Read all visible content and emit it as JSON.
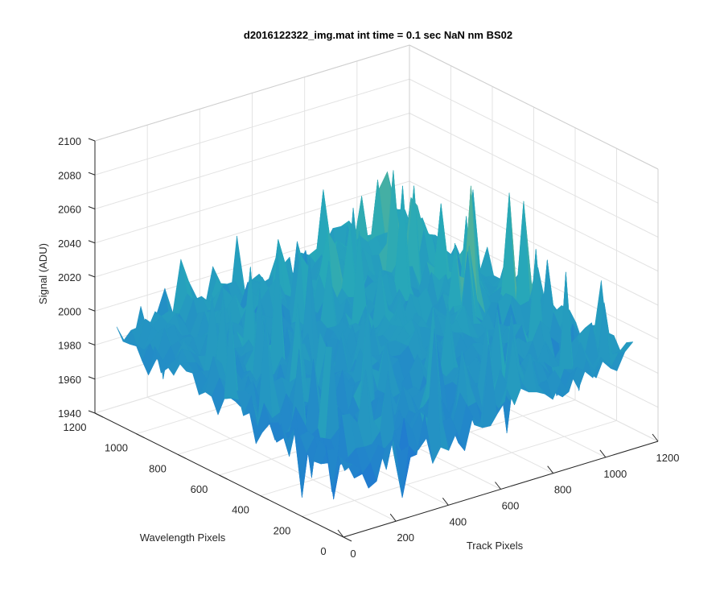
{
  "chart_data": {
    "type": "surface",
    "title": "d2016122322_img.mat int time = 0.1 sec  NaN nm BS02",
    "xlabel": "Track Pixels",
    "ylabel": "Wavelength Pixels",
    "zlabel": "Signal (ADU)",
    "xlim": [
      0,
      1200
    ],
    "ylim": [
      0,
      1200
    ],
    "zlim": [
      1940,
      2100
    ],
    "xticks": [
      "0",
      "200",
      "400",
      "600",
      "800",
      "1000",
      "1200"
    ],
    "yticks": [
      "0",
      "200",
      "400",
      "600",
      "800",
      "1000",
      "1200"
    ],
    "zticks": [
      "1940",
      "1960",
      "1980",
      "2000",
      "2020",
      "2040",
      "2060",
      "2080",
      "2100"
    ],
    "grid": true,
    "colormap": "parula",
    "colors": {
      "low": "#1f6fd6",
      "mid": "#27a9b8",
      "high": "#c9c845"
    },
    "surface_summary": {
      "baseline_near_origin": 1975,
      "baseline_far_corner": 2005,
      "max_peak": 2100,
      "min_trough": 1945
    }
  }
}
